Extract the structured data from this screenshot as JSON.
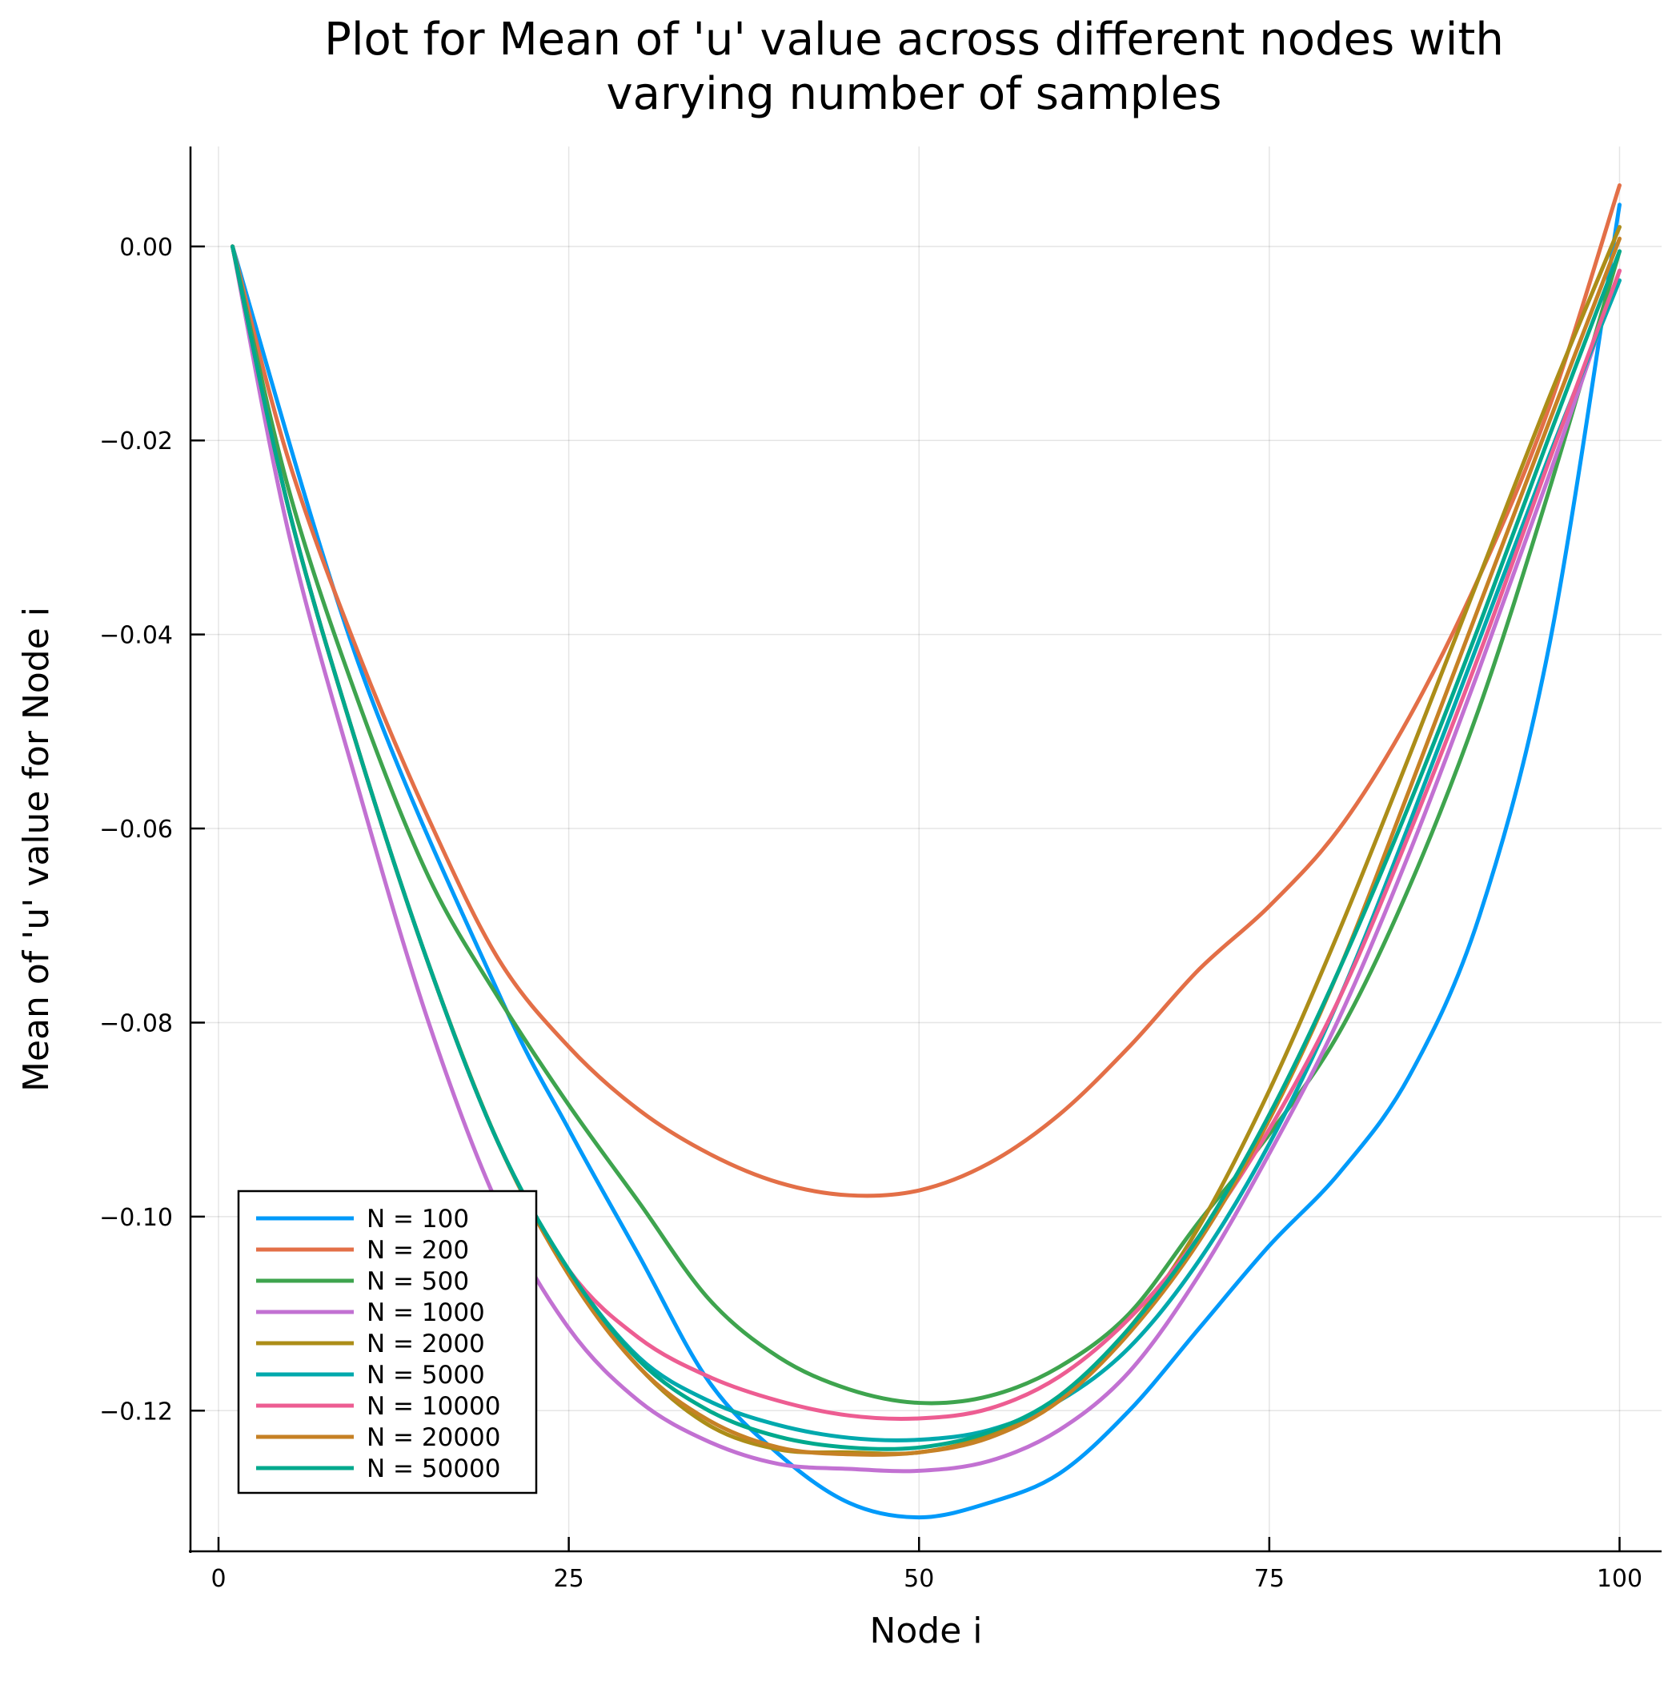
{
  "chart_data": {
    "type": "line",
    "title": [
      "Plot for Mean of 'u' value across different nodes with",
      "varying number of samples"
    ],
    "xlabel": "Node i",
    "ylabel": "Mean of 'u' value for Node i",
    "xlim": [
      -2,
      103
    ],
    "ylim": [
      -0.1345,
      0.0103
    ],
    "xticks": [
      0,
      25,
      50,
      75,
      100
    ],
    "xtick_labels": [
      "0",
      "25",
      "50",
      "75",
      "100"
    ],
    "yticks": [
      0.0,
      -0.02,
      -0.04,
      -0.06,
      -0.08,
      -0.1,
      -0.12
    ],
    "ytick_labels": [
      "0.00",
      "−0.02",
      "−0.04",
      "−0.06",
      "−0.08",
      "−0.10",
      "−0.12"
    ],
    "grid": true,
    "legend_position": "bottom-left",
    "series": [
      {
        "name": "N = 100",
        "color": "#009AFA",
        "x": [
          1,
          10,
          20,
          25,
          30,
          35,
          40,
          45,
          50,
          55,
          60,
          65,
          70,
          75,
          80,
          85,
          90,
          95,
          100
        ],
        "y": [
          0.0,
          -0.043,
          -0.077,
          -0.091,
          -0.104,
          -0.117,
          -0.1245,
          -0.1295,
          -0.131,
          -0.1295,
          -0.1265,
          -0.12,
          -0.1115,
          -0.103,
          -0.0955,
          -0.0855,
          -0.069,
          -0.041,
          0.0043
        ]
      },
      {
        "name": "N = 200",
        "color": "#E36F47",
        "x": [
          1,
          5,
          10,
          15,
          20,
          25,
          30,
          35,
          40,
          45,
          50,
          55,
          60,
          65,
          70,
          75,
          80,
          85,
          90,
          95,
          100
        ],
        "y": [
          0.0,
          -0.022,
          -0.042,
          -0.059,
          -0.0735,
          -0.0825,
          -0.089,
          -0.0935,
          -0.0965,
          -0.0978,
          -0.0973,
          -0.0945,
          -0.0895,
          -0.0825,
          -0.0745,
          -0.068,
          -0.06,
          -0.0485,
          -0.034,
          -0.0165,
          0.0063
        ]
      },
      {
        "name": "N = 500",
        "color": "#3EA44E",
        "x": [
          1,
          5,
          10,
          15,
          20,
          25,
          30,
          35,
          40,
          45,
          50,
          55,
          60,
          65,
          70,
          75,
          80,
          85,
          90,
          95,
          100
        ],
        "y": [
          0.0,
          -0.025,
          -0.047,
          -0.065,
          -0.0775,
          -0.0885,
          -0.0985,
          -0.1085,
          -0.1145,
          -0.1178,
          -0.1192,
          -0.1185,
          -0.1155,
          -0.11,
          -0.1005,
          -0.0915,
          -0.081,
          -0.066,
          -0.0475,
          -0.025,
          -0.0005
        ]
      },
      {
        "name": "N = 1000",
        "color": "#C271D2",
        "x": [
          1,
          5,
          10,
          15,
          20,
          25,
          30,
          35,
          40,
          45,
          50,
          55,
          60,
          65,
          70,
          75,
          80,
          85,
          90,
          95,
          100
        ],
        "y": [
          0.0,
          -0.0295,
          -0.056,
          -0.08,
          -0.099,
          -0.1115,
          -0.119,
          -0.1232,
          -0.1255,
          -0.126,
          -0.1262,
          -0.1252,
          -0.122,
          -0.116,
          -0.106,
          -0.0935,
          -0.0795,
          -0.0625,
          -0.0435,
          -0.0235,
          -0.0025
        ]
      },
      {
        "name": "N = 2000",
        "color": "#AC8D18",
        "x": [
          1,
          5,
          10,
          15,
          20,
          25,
          30,
          35,
          40,
          45,
          50,
          55,
          60,
          65,
          70,
          75,
          80,
          85,
          90,
          95,
          100
        ],
        "y": [
          0.0,
          -0.027,
          -0.052,
          -0.074,
          -0.0925,
          -0.106,
          -0.1155,
          -0.1215,
          -0.124,
          -0.1243,
          -0.1243,
          -0.1225,
          -0.1185,
          -0.1115,
          -0.101,
          -0.087,
          -0.0705,
          -0.0525,
          -0.034,
          -0.0155,
          0.002
        ]
      },
      {
        "name": "N = 5000",
        "color": "#00A9AD",
        "x": [
          1,
          5,
          10,
          15,
          20,
          25,
          30,
          35,
          40,
          45,
          50,
          55,
          60,
          65,
          70,
          75,
          80,
          85,
          90,
          95,
          100
        ],
        "y": [
          0.0,
          -0.027,
          -0.052,
          -0.074,
          -0.0925,
          -0.1055,
          -0.1145,
          -0.119,
          -0.1215,
          -0.1228,
          -0.123,
          -0.122,
          -0.119,
          -0.1135,
          -0.1045,
          -0.0925,
          -0.0775,
          -0.0595,
          -0.0405,
          -0.0215,
          -0.0035
        ]
      },
      {
        "name": "N = 10000",
        "color": "#ED5D92",
        "x": [
          1,
          5,
          10,
          15,
          20,
          25,
          30,
          35,
          40,
          45,
          50,
          55,
          60,
          65,
          70,
          75,
          80,
          85,
          90,
          95,
          100
        ],
        "y": [
          0.0,
          -0.027,
          -0.052,
          -0.074,
          -0.0925,
          -0.1055,
          -0.1125,
          -0.1165,
          -0.119,
          -0.1205,
          -0.1208,
          -0.1198,
          -0.1165,
          -0.1105,
          -0.102,
          -0.091,
          -0.0775,
          -0.0605,
          -0.042,
          -0.022,
          -0.0025
        ]
      },
      {
        "name": "N = 20000",
        "color": "#C68125",
        "x": [
          1,
          5,
          10,
          15,
          20,
          25,
          30,
          35,
          40,
          45,
          50,
          55,
          60,
          65,
          70,
          75,
          80,
          85,
          90,
          95,
          100
        ],
        "y": [
          0.0,
          -0.027,
          -0.052,
          -0.074,
          -0.0925,
          -0.106,
          -0.1155,
          -0.121,
          -0.1238,
          -0.1245,
          -0.1243,
          -0.1228,
          -0.119,
          -0.112,
          -0.1025,
          -0.09,
          -0.0745,
          -0.056,
          -0.037,
          -0.018,
          0.0008
        ]
      },
      {
        "name": "N = 50000",
        "color": "#00A98D",
        "x": [
          1,
          5,
          10,
          15,
          20,
          25,
          30,
          35,
          40,
          45,
          50,
          55,
          60,
          65,
          70,
          75,
          80,
          85,
          90,
          95,
          100
        ],
        "y": [
          0.0,
          -0.027,
          -0.052,
          -0.074,
          -0.0925,
          -0.1055,
          -0.1148,
          -0.12,
          -0.1227,
          -0.1238,
          -0.1238,
          -0.1222,
          -0.1185,
          -0.1115,
          -0.102,
          -0.0895,
          -0.0745,
          -0.0575,
          -0.039,
          -0.0195,
          -0.0005
        ]
      }
    ]
  }
}
